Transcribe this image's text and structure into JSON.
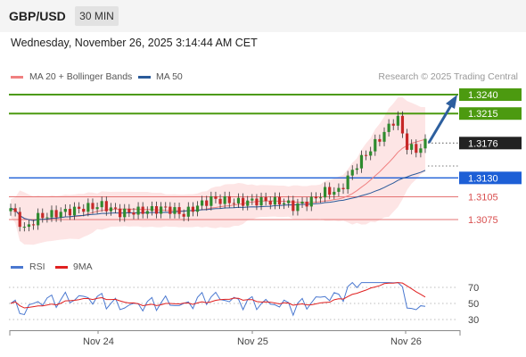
{
  "header": {
    "symbol": "GBP/USD",
    "timeframe": "30 MIN"
  },
  "timestamp": "Wednesday, November 26, 2025 3:14:44 AM CET",
  "legend": {
    "ma20": "MA 20 + Bollinger Bands",
    "ma20_color": "#f08080",
    "ma50": "MA 50",
    "ma50_color": "#2a5a9a"
  },
  "source": "Research © 2025 Trading Central",
  "chart_data": {
    "type": "line",
    "price_levels": [
      {
        "value": 1.324,
        "label": "1.3240",
        "kind": "target",
        "color": "#4c9a10"
      },
      {
        "value": 1.3215,
        "label": "1.3215",
        "kind": "target",
        "color": "#4c9a10"
      },
      {
        "value": 1.3176,
        "label": "1.3176",
        "kind": "last",
        "color": "#222222"
      },
      {
        "value": 1.313,
        "label": "1.3130",
        "kind": "pivot",
        "color": "#1d5fd6"
      },
      {
        "value": 1.3105,
        "label": "1.3105",
        "kind": "support",
        "color": "#d94f4f"
      },
      {
        "value": 1.3075,
        "label": "1.3075",
        "kind": "support",
        "color": "#d94f4f"
      }
    ],
    "price_ylim": [
      1.304,
      1.3255
    ],
    "x_labels": [
      "Nov 24",
      "Nov 25",
      "Nov 26"
    ],
    "rsi": {
      "legend_rsi": "RSI",
      "rsi_color": "#4a78d0",
      "legend_ma": "9MA",
      "ma_color": "#e02020",
      "ticks": [
        "70",
        "50",
        "30"
      ],
      "ylim": [
        20,
        80
      ]
    }
  }
}
